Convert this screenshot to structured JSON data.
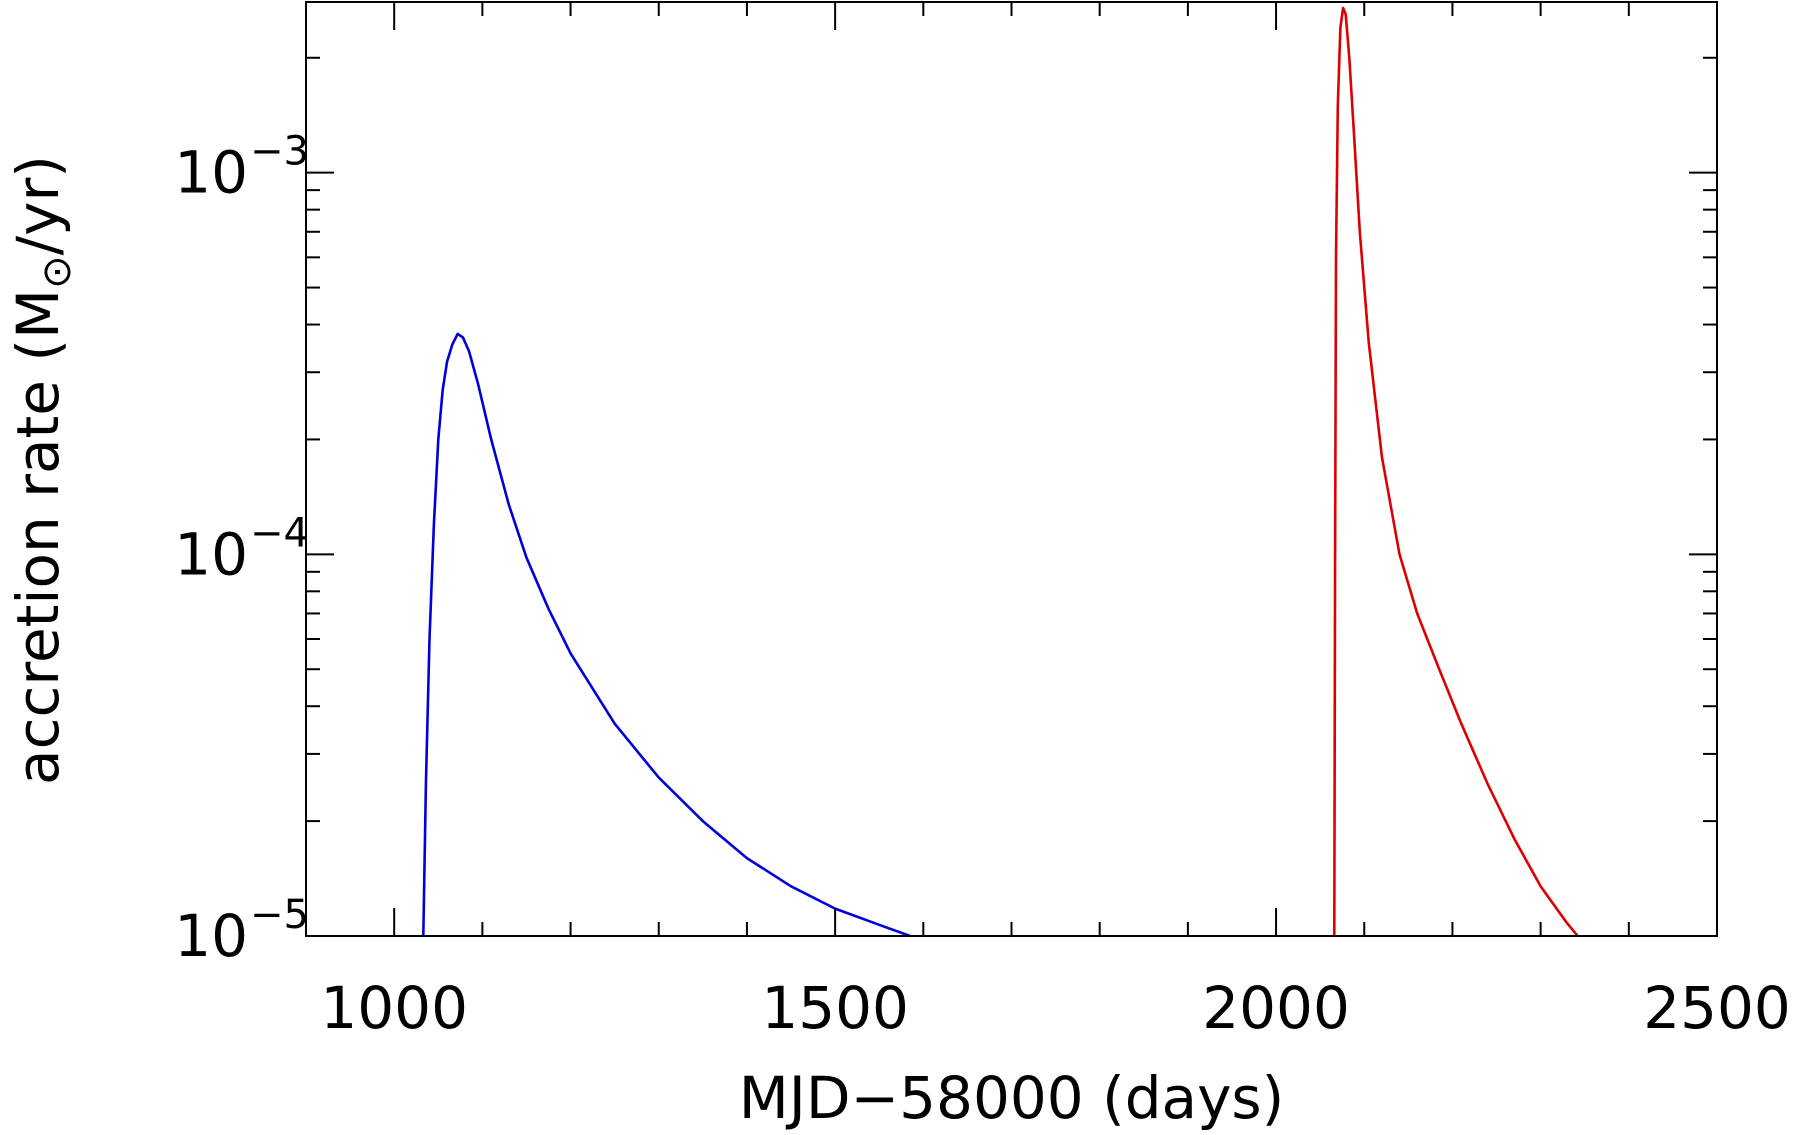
{
  "chart_data": {
    "type": "line",
    "title": "",
    "xlabel": "MJD−58000 (days)",
    "ylabel_text": "accretion rate (M",
    "ylabel_unit": "/yr)",
    "ylabel_subscript": "⊙",
    "xlim": [
      900,
      2500
    ],
    "ylim": [
      1e-05,
      0.0028
    ],
    "yscale": "log",
    "grid": false,
    "x_ticks": [
      {
        "value": 1000,
        "label": "1000"
      },
      {
        "value": 1500,
        "label": "1500"
      },
      {
        "value": 2000,
        "label": "2000"
      },
      {
        "value": 2500,
        "label": "2500"
      }
    ],
    "x_minor_step": 100,
    "y_ticks": [
      {
        "value": 1e-05,
        "base": "10",
        "exp": "−5"
      },
      {
        "value": 0.0001,
        "base": "10",
        "exp": "−4"
      },
      {
        "value": 0.001,
        "base": "10",
        "exp": "−3"
      }
    ],
    "series": [
      {
        "color": "#0000dd",
        "points": [
          [
            1033,
            1e-05
          ],
          [
            1036,
            2.5e-05
          ],
          [
            1040,
            6e-05
          ],
          [
            1045,
            0.00012
          ],
          [
            1050,
            0.0002
          ],
          [
            1055,
            0.00027
          ],
          [
            1060,
            0.00032
          ],
          [
            1066,
            0.000355
          ],
          [
            1072,
            0.000378
          ],
          [
            1078,
            0.00037
          ],
          [
            1085,
            0.00034
          ],
          [
            1095,
            0.00028
          ],
          [
            1110,
            0.0002
          ],
          [
            1130,
            0.000135
          ],
          [
            1150,
            9.8e-05
          ],
          [
            1175,
            7.2e-05
          ],
          [
            1200,
            5.5e-05
          ],
          [
            1250,
            3.6e-05
          ],
          [
            1300,
            2.6e-05
          ],
          [
            1350,
            2e-05
          ],
          [
            1400,
            1.6e-05
          ],
          [
            1450,
            1.35e-05
          ],
          [
            1500,
            1.18e-05
          ],
          [
            1550,
            1.07e-05
          ],
          [
            1585,
            1e-05
          ]
        ]
      },
      {
        "color": "#dd0000",
        "points": [
          [
            2066,
            1e-05
          ],
          [
            2067,
            0.0001
          ],
          [
            2068,
            0.0006
          ],
          [
            2070,
            0.0015
          ],
          [
            2073,
            0.0024
          ],
          [
            2076,
            0.0027
          ],
          [
            2079,
            0.0026
          ],
          [
            2083,
            0.002
          ],
          [
            2088,
            0.0013
          ],
          [
            2095,
            0.0007
          ],
          [
            2105,
            0.00036
          ],
          [
            2120,
            0.00018
          ],
          [
            2140,
            0.0001
          ],
          [
            2160,
            7e-05
          ],
          [
            2185,
            5e-05
          ],
          [
            2210,
            3.6e-05
          ],
          [
            2240,
            2.5e-05
          ],
          [
            2270,
            1.8e-05
          ],
          [
            2300,
            1.35e-05
          ],
          [
            2330,
            1.08e-05
          ],
          [
            2342,
            1e-05
          ]
        ]
      }
    ]
  }
}
